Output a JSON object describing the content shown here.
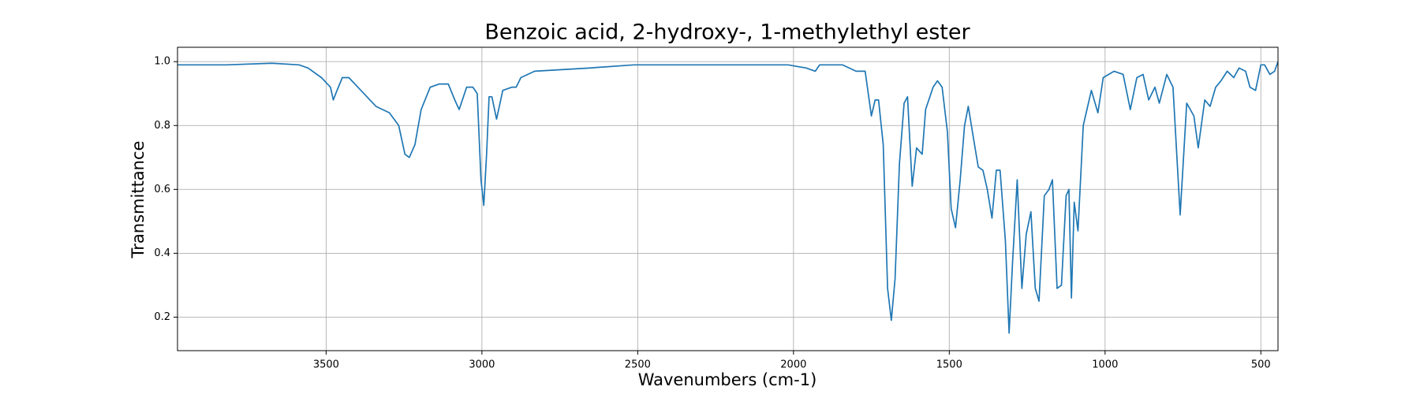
{
  "chart_data": {
    "type": "line",
    "title": "Benzoic acid, 2-hydroxy-, 1-methylethyl ester",
    "xlabel": "Wavenumbers (cm-1)",
    "ylabel": "Transmittance",
    "x": [
      3977,
      3820,
      3674,
      3587,
      3558,
      3515,
      3486,
      3477,
      3465,
      3448,
      3427,
      3398,
      3369,
      3340,
      3297,
      3267,
      3247,
      3233,
      3215,
      3195,
      3166,
      3137,
      3108,
      3087,
      3073,
      3049,
      3029,
      3015,
      3003,
      2994,
      2985,
      2977,
      2968,
      2953,
      2933,
      2904,
      2890,
      2875,
      2831,
      2657,
      2512,
      2221,
      2017,
      1959,
      1930,
      1916,
      1843,
      1799,
      1770,
      1750,
      1738,
      1727,
      1712,
      1698,
      1686,
      1674,
      1660,
      1645,
      1634,
      1619,
      1605,
      1587,
      1576,
      1552,
      1538,
      1523,
      1506,
      1494,
      1480,
      1465,
      1451,
      1439,
      1424,
      1407,
      1392,
      1378,
      1363,
      1349,
      1337,
      1320,
      1308,
      1297,
      1282,
      1267,
      1253,
      1238,
      1224,
      1212,
      1195,
      1180,
      1169,
      1154,
      1140,
      1125,
      1116,
      1108,
      1099,
      1087,
      1070,
      1044,
      1023,
      1006,
      971,
      942,
      919,
      898,
      878,
      860,
      840,
      826,
      802,
      782,
      759,
      738,
      715,
      701,
      680,
      663,
      645,
      628,
      608,
      587,
      570,
      549,
      535,
      517,
      500,
      488,
      471,
      456,
      445
    ],
    "series": [
      {
        "name": "Transmittance",
        "color": "#1f77b4",
        "values": [
          0.99,
          0.99,
          0.995,
          0.99,
          0.98,
          0.95,
          0.92,
          0.88,
          0.91,
          0.95,
          0.95,
          0.92,
          0.89,
          0.86,
          0.84,
          0.8,
          0.71,
          0.7,
          0.74,
          0.85,
          0.92,
          0.93,
          0.93,
          0.88,
          0.85,
          0.92,
          0.92,
          0.9,
          0.63,
          0.55,
          0.71,
          0.89,
          0.89,
          0.82,
          0.91,
          0.92,
          0.92,
          0.95,
          0.97,
          0.98,
          0.99,
          0.99,
          0.99,
          0.98,
          0.97,
          0.99,
          0.99,
          0.97,
          0.97,
          0.83,
          0.88,
          0.88,
          0.74,
          0.29,
          0.19,
          0.32,
          0.68,
          0.87,
          0.89,
          0.61,
          0.73,
          0.71,
          0.85,
          0.92,
          0.94,
          0.92,
          0.78,
          0.54,
          0.48,
          0.63,
          0.8,
          0.86,
          0.77,
          0.67,
          0.66,
          0.6,
          0.51,
          0.66,
          0.66,
          0.44,
          0.15,
          0.37,
          0.63,
          0.29,
          0.46,
          0.53,
          0.29,
          0.25,
          0.58,
          0.6,
          0.63,
          0.29,
          0.3,
          0.58,
          0.6,
          0.26,
          0.56,
          0.47,
          0.8,
          0.91,
          0.84,
          0.95,
          0.97,
          0.96,
          0.85,
          0.95,
          0.96,
          0.88,
          0.92,
          0.87,
          0.96,
          0.92,
          0.52,
          0.87,
          0.83,
          0.73,
          0.88,
          0.86,
          0.92,
          0.94,
          0.97,
          0.95,
          0.98,
          0.97,
          0.92,
          0.91,
          0.99,
          0.99,
          0.96,
          0.97,
          1.0
        ]
      }
    ],
    "xlim": [
      3977,
      445
    ],
    "ylim": [
      0.095,
      1.045
    ],
    "xticks": [
      3500,
      3000,
      2500,
      2000,
      1500,
      1000,
      500
    ],
    "yticks": [
      0.2,
      0.4,
      0.6,
      0.8,
      {
        "value": 1,
        "label": "1.0"
      }
    ],
    "grid": true
  }
}
